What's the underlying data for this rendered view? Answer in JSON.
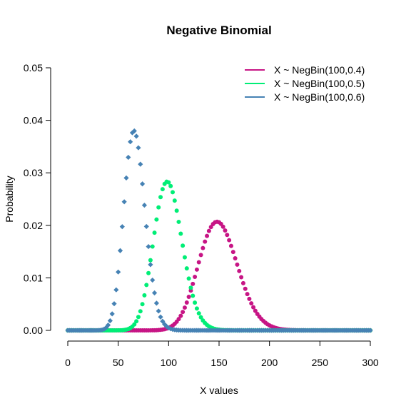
{
  "chart_data": {
    "type": "scatter",
    "title": "Negative Binomial",
    "xlabel": "X values",
    "ylabel": "Probability",
    "xlim": [
      0,
      300
    ],
    "ylim": [
      0,
      0.05
    ],
    "xticks": [
      "0",
      "50",
      "100",
      "150",
      "200",
      "250",
      "300"
    ],
    "yticks": [
      "0.00",
      "0.01",
      "0.02",
      "0.03",
      "0.04",
      "0.05"
    ],
    "grid": false,
    "legend": "top-right",
    "x": {
      "start": 0,
      "end": 300,
      "step": 2
    },
    "series": [
      {
        "name": "X ~ NegBin(100,0.4)",
        "color": "#C71585",
        "marker": "circle",
        "r": 100,
        "p": 0.4
      },
      {
        "name": "X ~ NegBin(100,0.5)",
        "color": "#00EE76",
        "marker": "circle",
        "r": 100,
        "p": 0.5
      },
      {
        "name": "X ~ NegBin(100,0.6)",
        "color": "#4682B4",
        "marker": "diamond",
        "r": 100,
        "p": 0.6
      }
    ]
  }
}
